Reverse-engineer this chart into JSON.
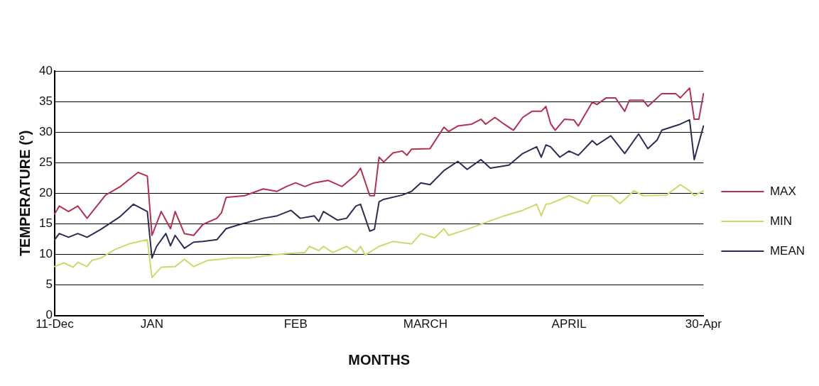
{
  "chart_data": {
    "type": "line",
    "xlabel": "MONTHS",
    "ylabel": "TEMPERATURE (°)",
    "ylim": [
      0,
      40
    ],
    "categories": [
      "11-Dec",
      null,
      null,
      null,
      null,
      null,
      null,
      null,
      null,
      null,
      null,
      null,
      null,
      null,
      null,
      null,
      null,
      null,
      null,
      null,
      null,
      "JAN",
      null,
      null,
      null,
      null,
      null,
      null,
      null,
      null,
      null,
      null,
      null,
      null,
      null,
      null,
      null,
      null,
      null,
      null,
      null,
      null,
      null,
      null,
      null,
      null,
      null,
      null,
      null,
      null,
      null,
      null,
      "FEB",
      null,
      null,
      null,
      null,
      null,
      null,
      null,
      null,
      null,
      null,
      null,
      null,
      null,
      null,
      null,
      null,
      null,
      null,
      null,
      null,
      null,
      null,
      null,
      null,
      null,
      null,
      null,
      "MARCH",
      null,
      null,
      null,
      null,
      null,
      null,
      null,
      null,
      null,
      null,
      null,
      null,
      null,
      null,
      null,
      null,
      null,
      null,
      null,
      null,
      null,
      null,
      null,
      null,
      null,
      null,
      null,
      null,
      null,
      null,
      "APRIL",
      null,
      null,
      null,
      null,
      null,
      null,
      null,
      null,
      null,
      null,
      null,
      null,
      null,
      null,
      null,
      null,
      null,
      null,
      null,
      null,
      null,
      null,
      null,
      null,
      null,
      null,
      null,
      null,
      "30-Apr"
    ],
    "yticks": [
      0,
      5,
      10,
      15,
      20,
      25,
      30,
      35,
      40
    ],
    "grid": "y",
    "legend": "right",
    "marker": "none",
    "line_style": "solid",
    "series": [
      {
        "name": "MAX",
        "color": "#b5304f",
        "values": [
          16.6,
          17.9,
          null,
          17.0,
          null,
          17.9,
          null,
          15.9,
          null,
          null,
          null,
          19.7,
          null,
          null,
          21.0,
          null,
          null,
          null,
          23.4,
          null,
          22.8,
          13.1,
          null,
          17.0,
          null,
          14.2,
          17.0,
          null,
          13.4,
          null,
          13.1,
          null,
          14.9,
          null,
          null,
          15.9,
          16.8,
          19.3,
          null,
          null,
          null,
          19.6,
          null,
          null,
          null,
          20.7,
          null,
          null,
          20.3,
          null,
          21.1,
          null,
          21.7,
          null,
          21.1,
          null,
          21.7,
          null,
          null,
          22.1,
          null,
          null,
          21.1,
          null,
          null,
          23.0,
          24.1,
          null,
          19.6,
          19.6,
          25.9,
          25.1,
          null,
          26.6,
          null,
          26.9,
          26.2,
          27.2,
          null,
          null,
          null,
          27.3,
          null,
          null,
          30.8,
          30.1,
          null,
          31.0,
          null,
          null,
          31.3,
          null,
          32.1,
          31.3,
          null,
          32.4,
          null,
          31.3,
          null,
          30.3,
          null,
          32.4,
          null,
          33.4,
          null,
          33.4,
          34.2,
          31.4,
          30.3,
          null,
          32.1,
          null,
          32.0,
          31.0,
          null,
          null,
          34.9,
          34.5,
          null,
          35.6,
          null,
          35.6,
          null,
          33.4,
          35.2,
          null,
          null,
          35.2,
          34.2,
          null,
          null,
          36.3,
          null,
          null,
          36.3,
          35.6,
          null,
          37.2,
          32.1,
          32.1,
          36.3
        ]
      },
      {
        "name": "MIN",
        "color": "#cfd96a",
        "values": [
          8.0,
          null,
          8.6,
          null,
          7.9,
          8.7,
          null,
          8.0,
          9.0,
          null,
          9.4,
          null,
          null,
          10.8,
          null,
          null,
          11.7,
          null,
          null,
          null,
          12.4,
          6.2,
          null,
          7.9,
          null,
          null,
          8.0,
          null,
          9.2,
          null,
          8.0,
          null,
          null,
          9.0,
          null,
          null,
          9.2,
          null,
          9.4,
          null,
          null,
          null,
          9.4,
          null,
          null,
          null,
          null,
          9.9,
          null,
          null,
          10.1,
          null,
          null,
          null,
          10.3,
          11.3,
          null,
          10.6,
          11.3,
          null,
          10.3,
          null,
          null,
          11.3,
          null,
          10.3,
          11.3,
          9.9,
          null,
          null,
          11.3,
          null,
          null,
          12.1,
          null,
          null,
          null,
          11.7,
          null,
          13.4,
          null,
          null,
          12.7,
          null,
          14.2,
          13.1,
          null,
          null,
          null,
          14.1,
          null,
          null,
          null,
          15.2,
          null,
          null,
          null,
          16.3,
          null,
          null,
          null,
          17.2,
          null,
          null,
          18.2,
          16.3,
          18.2,
          18.3,
          null,
          null,
          null,
          19.6,
          null,
          null,
          null,
          18.3,
          19.6,
          null,
          null,
          null,
          19.6,
          null,
          18.3,
          null,
          null,
          20.4,
          null,
          19.6,
          null,
          null,
          null,
          null,
          19.7,
          null,
          null,
          21.4,
          null,
          20.4,
          19.6,
          null,
          20.4
        ]
      },
      {
        "name": "MEAN",
        "color": "#2b2b55",
        "values": [
          12.4,
          13.4,
          null,
          12.8,
          null,
          13.4,
          null,
          12.8,
          null,
          null,
          14.1,
          null,
          null,
          null,
          16.1,
          null,
          null,
          18.2,
          null,
          null,
          17.0,
          9.4,
          11.3,
          null,
          13.4,
          11.4,
          13.1,
          null,
          11.0,
          null,
          12.0,
          null,
          12.1,
          null,
          null,
          12.4,
          null,
          14.2,
          null,
          null,
          14.9,
          null,
          null,
          null,
          null,
          15.9,
          null,
          null,
          16.3,
          null,
          null,
          17.2,
          null,
          15.9,
          null,
          null,
          16.3,
          15.4,
          17.0,
          null,
          null,
          15.6,
          null,
          15.9,
          null,
          17.9,
          18.2,
          null,
          13.8,
          14.1,
          18.6,
          19.0,
          null,
          null,
          null,
          19.7,
          null,
          20.3,
          null,
          21.7,
          null,
          21.4,
          null,
          null,
          23.7,
          null,
          null,
          25.2,
          null,
          23.9,
          null,
          null,
          25.5,
          null,
          24.1,
          null,
          null,
          null,
          24.6,
          null,
          null,
          26.5,
          null,
          null,
          27.6,
          25.9,
          27.9,
          27.6,
          null,
          25.9,
          null,
          26.9,
          null,
          26.2,
          null,
          null,
          28.6,
          27.9,
          null,
          null,
          29.4,
          null,
          null,
          26.5,
          null,
          null,
          29.7,
          null,
          27.3,
          null,
          28.7,
          30.3,
          null,
          null,
          null,
          31.3,
          null,
          32.0,
          25.5,
          null,
          31.0
        ]
      }
    ]
  }
}
